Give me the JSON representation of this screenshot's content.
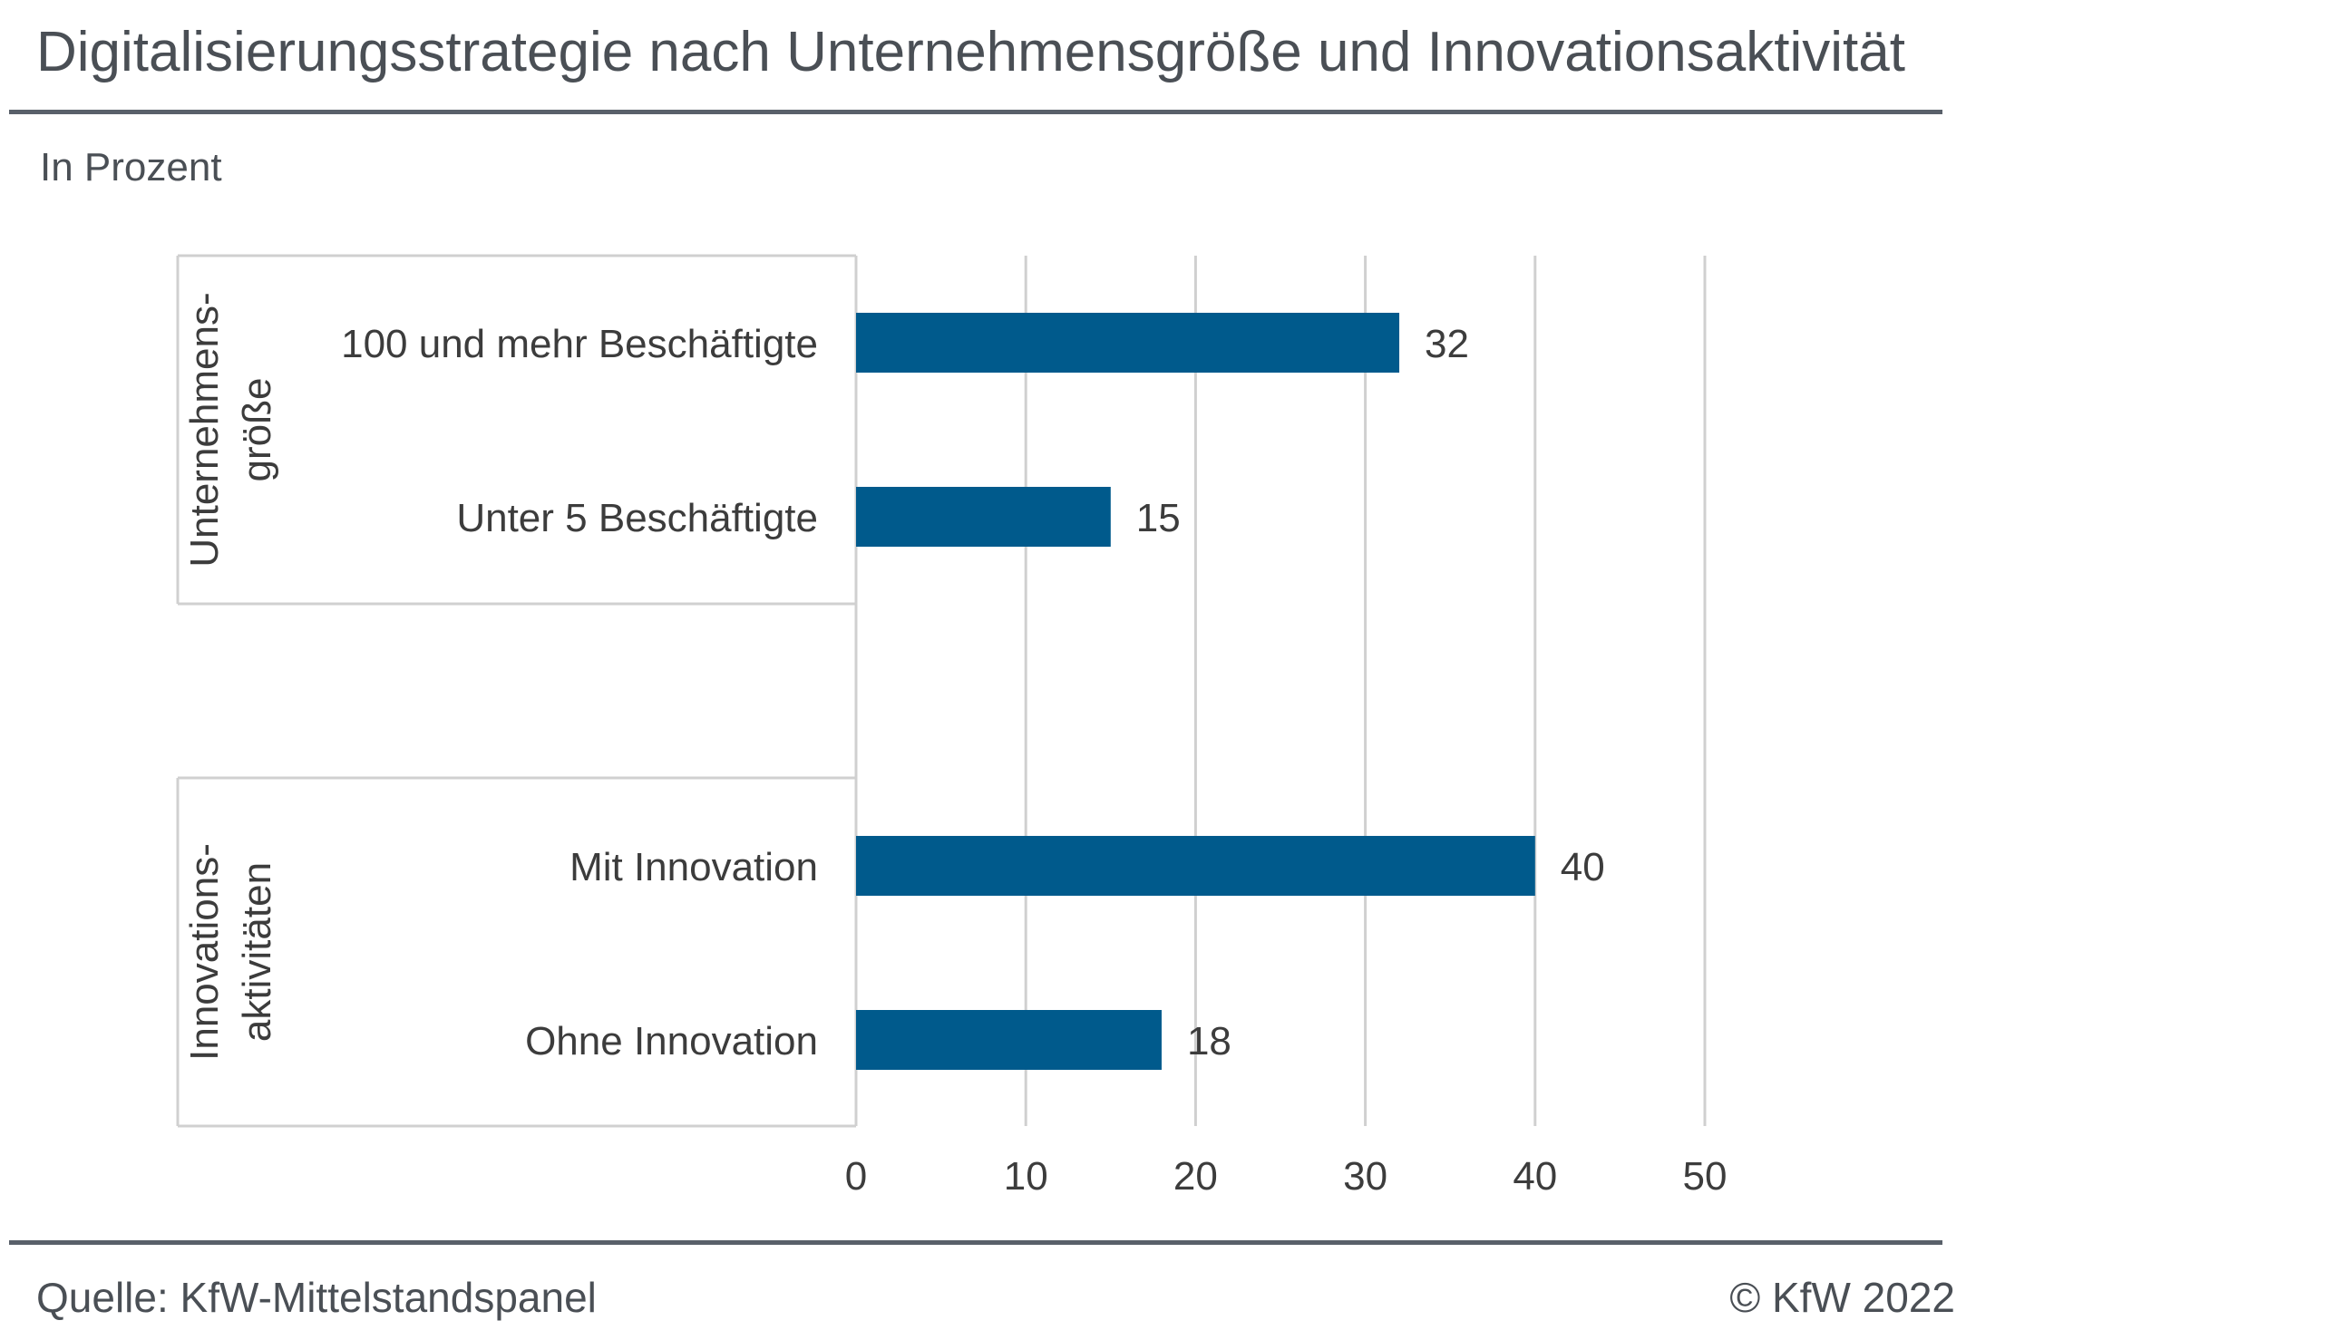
{
  "header": {
    "title": "Digitalisierungsstrategie nach Unternehmensgröße und Innovationsaktivität",
    "subtitle": "In Prozent"
  },
  "footer": {
    "source": "Quelle: KfW-Mittelstandspanel",
    "copyright": "© KfW 2022"
  },
  "colors": {
    "bar": "#005a8c",
    "grid": "#d0d0d0",
    "text": "#3c3c3c"
  },
  "chart_data": {
    "type": "bar",
    "orientation": "horizontal",
    "title": "Digitalisierungsstrategie nach Unternehmensgröße und Innovationsaktivität",
    "subtitle": "In Prozent",
    "xlim": [
      0,
      50
    ],
    "x_ticks": [
      0,
      10,
      20,
      30,
      40,
      50
    ],
    "grid": true,
    "groups": [
      {
        "label_lines": [
          "Unternehmens-",
          "größe"
        ],
        "categories": [
          "100 und mehr Beschäftigte",
          "Unter 5 Beschäftigte"
        ],
        "values": [
          32,
          15
        ]
      },
      {
        "label_lines": [
          "Innovations-",
          "aktivitäten"
        ],
        "categories": [
          "Mit Innovation",
          "Ohne Innovation"
        ],
        "values": [
          40,
          18
        ]
      }
    ]
  }
}
